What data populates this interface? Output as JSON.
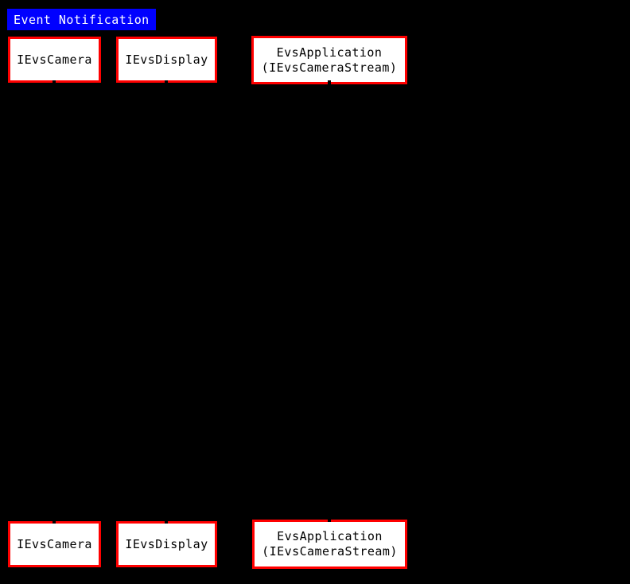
{
  "diagram": {
    "type": "sequence-diagram",
    "title": {
      "label": "Event Notification"
    },
    "participants": [
      {
        "id": "ievscamera",
        "lines": [
          "IEvsCamera"
        ]
      },
      {
        "id": "ievsdisplay",
        "lines": [
          "IEvsDisplay"
        ]
      },
      {
        "id": "evsapplication",
        "lines": [
          "EvsApplication",
          "(IEvsCameraStream)"
        ]
      }
    ],
    "colors": {
      "background": "#000000",
      "title_bg": "#0000ff",
      "title_text": "#ffffff",
      "participant_border": "#ff0000",
      "participant_fill": "#ffffff",
      "participant_text": "#000000",
      "lifeline": "#000000"
    }
  }
}
